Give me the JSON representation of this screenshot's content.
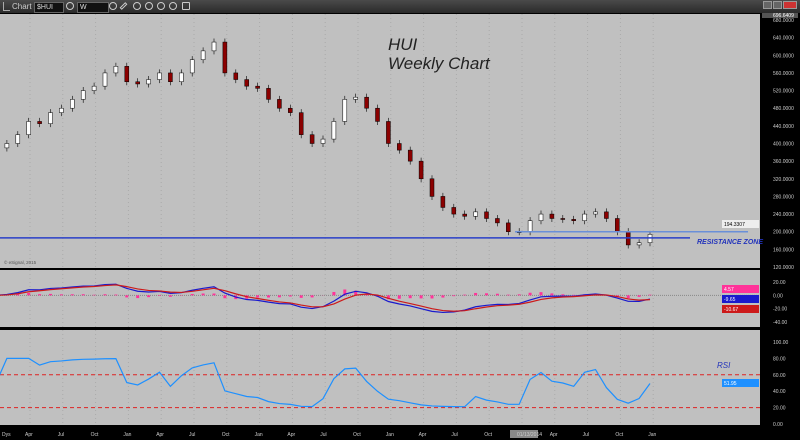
{
  "window": {
    "title": "Chart",
    "symbol": "$HUI",
    "interval": "W"
  },
  "chart_data": [
    {
      "type": "candlestick",
      "pane": "price",
      "title": "HUI",
      "subtitle": "Weekly Chart",
      "x": [
        "2010-01",
        "2010-02",
        "2010-03",
        "2010-04",
        "2010-05",
        "2010-06",
        "2010-07",
        "2010-08",
        "2010-09",
        "2010-10",
        "2010-11",
        "2010-12",
        "2011-01",
        "2011-02",
        "2011-03",
        "2011-04",
        "2011-05",
        "2011-06",
        "2011-07",
        "2011-08",
        "2011-09",
        "2011-10",
        "2011-11",
        "2011-12",
        "2012-01",
        "2012-02",
        "2012-03",
        "2012-04",
        "2012-05",
        "2012-06",
        "2012-07",
        "2012-08",
        "2012-09",
        "2012-10",
        "2012-11",
        "2012-12",
        "2013-01",
        "2013-02",
        "2013-03",
        "2013-04",
        "2013-05",
        "2013-06",
        "2013-07",
        "2013-08",
        "2013-09",
        "2013-10",
        "2013-11",
        "2013-12",
        "2014-01",
        "2014-02",
        "2014-03",
        "2014-04",
        "2014-05",
        "2014-06",
        "2014-07",
        "2014-08",
        "2014-09",
        "2014-10",
        "2014-11",
        "2014-12",
        "2015-01"
      ],
      "close": [
        390,
        400,
        420,
        450,
        445,
        470,
        480,
        500,
        520,
        530,
        560,
        575,
        540,
        535,
        545,
        560,
        540,
        560,
        590,
        610,
        630,
        560,
        545,
        530,
        525,
        500,
        480,
        470,
        420,
        400,
        410,
        450,
        500,
        505,
        480,
        450,
        400,
        385,
        360,
        320,
        280,
        255,
        240,
        235,
        245,
        230,
        220,
        200,
        200,
        225,
        240,
        230,
        228,
        225,
        240,
        245,
        230,
        200,
        170,
        175,
        194
      ],
      "yticks": [
        "680.0000",
        "640.0000",
        "600.0000",
        "560.0000",
        "520.0000",
        "480.0000",
        "440.0000",
        "400.0000",
        "360.0000",
        "320.0000",
        "280.0000",
        "240.0000",
        "200.0000",
        "160.0000",
        "120.0000"
      ],
      "ylim": [
        120,
        680
      ],
      "top_value": "696.6409",
      "last_value": "194.3307",
      "resistance_lines": [
        200,
        186
      ],
      "annotation": "RESISTANCE ZONE",
      "watermark": "© eSignal, 2015"
    },
    {
      "type": "line",
      "pane": "macd",
      "yticks": [
        "20.00",
        "0.00",
        "-20.00",
        "-40.00"
      ],
      "ylim": [
        -45,
        25
      ],
      "last_values": {
        "histogram": "4.57",
        "macd": "-9.65",
        "signal": "-10.67"
      }
    },
    {
      "type": "line",
      "pane": "rsi",
      "label": "RSI",
      "yticks": [
        "100.00",
        "80.00",
        "60.00",
        "40.00",
        "20.00",
        "0.00"
      ],
      "ylim": [
        0,
        100
      ],
      "levels": [
        60,
        20
      ],
      "last_value": "51.95"
    }
  ],
  "xaxis": {
    "corner": "Dys",
    "labels": [
      "Apr",
      "Jul",
      "Oct",
      "Jan",
      "Apr",
      "Jul",
      "Oct",
      "Jan",
      "Apr",
      "Jul",
      "Oct",
      "Jan",
      "Apr",
      "Jul",
      "Oct",
      "01/13/2014",
      "Apr",
      "Jul",
      "Oct",
      "Jan"
    ]
  },
  "colors": {
    "bg": "#c0c0c0",
    "up": "#ffffff",
    "down": "#8b0000",
    "macd": "#1a1acc",
    "signal": "#cc1a1a",
    "hist": "#ff3399",
    "rsi": "#1e90ff",
    "resistance1": "#6a8fd8",
    "resistance2": "#2a3fc8"
  }
}
